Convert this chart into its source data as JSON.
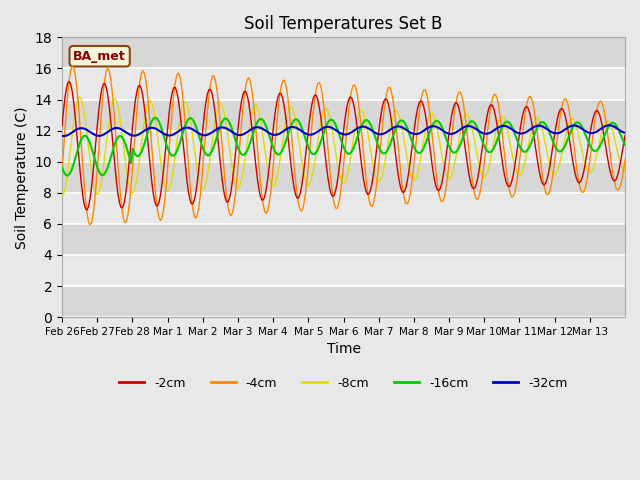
{
  "title": "Soil Temperatures Set B",
  "xlabel": "Time",
  "ylabel": "Soil Temperature (C)",
  "ylim": [
    0,
    18
  ],
  "yticks": [
    0,
    2,
    4,
    6,
    8,
    10,
    12,
    14,
    16,
    18
  ],
  "background_color": "#e8e8e8",
  "plot_bg_color": "#e8e8e8",
  "legend_label": "BA_met",
  "series_colors": [
    "#cc0000",
    "#ff8800",
    "#dddd00",
    "#00cc00",
    "#0000cc"
  ],
  "series_labels": [
    "-2cm",
    "-4cm",
    "-8cm",
    "-16cm",
    "-32cm"
  ],
  "date_labels": [
    "Feb 26",
    "Feb 27",
    "Feb 28",
    "Mar 1",
    "Mar 2",
    "Mar 3",
    "Mar 4",
    "Mar 5",
    "Mar 6",
    "Mar 7",
    "Mar 8",
    "Mar 9",
    "Mar 10",
    "Mar 11",
    "Mar 12",
    "Mar 13"
  ],
  "n_days": 16,
  "points_per_day": 24
}
